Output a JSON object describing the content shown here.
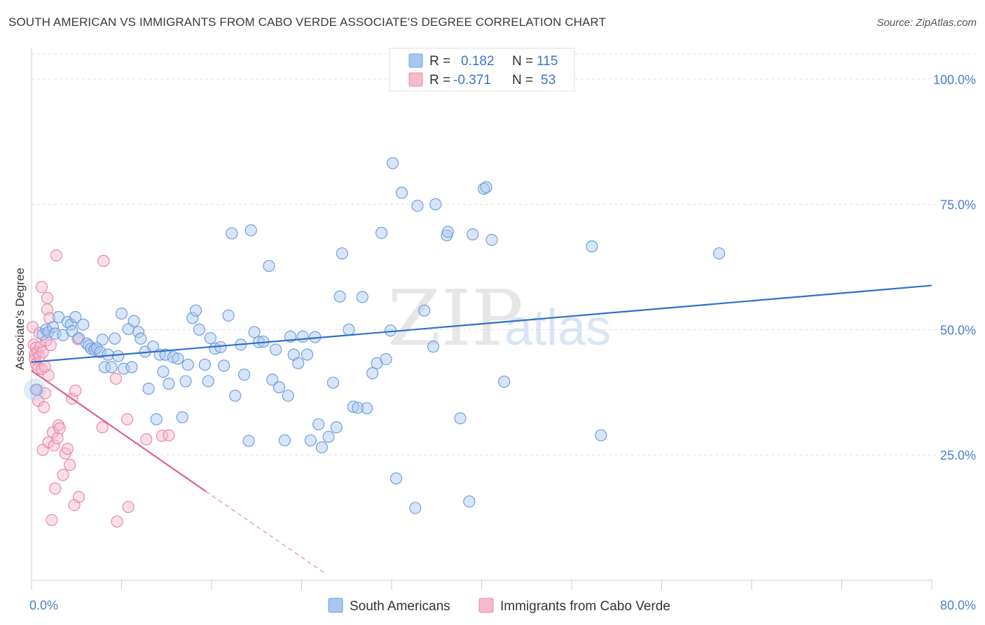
{
  "header": {
    "title": "SOUTH AMERICAN VS IMMIGRANTS FROM CABO VERDE ASSOCIATE'S DEGREE CORRELATION CHART",
    "source": "Source: ZipAtlas.com"
  },
  "watermark": {
    "zip": "ZIP",
    "atlas": "atlas"
  },
  "legend": {
    "rows": [
      {
        "r_label": "R =",
        "r_value": "0.182",
        "n_label": "N =",
        "n_value": "115"
      },
      {
        "r_label": "R =",
        "r_value": "-0.371",
        "n_label": "N =",
        "n_value": "53"
      }
    ]
  },
  "colors": {
    "blue_fill": "#a9c6ef",
    "blue_stroke": "#6f9fdd",
    "blue_line": "#2f6fcb",
    "pink_fill": "#f6b9cd",
    "pink_stroke": "#e987a8",
    "pink_line": "#e0608d",
    "tick_text": "#4a7fd0",
    "grid": "#dddddd"
  },
  "chart_data": {
    "type": "scatter",
    "title": "SOUTH AMERICAN VS IMMIGRANTS FROM CABO VERDE ASSOCIATE'S DEGREE CORRELATION CHART",
    "xlabel": "",
    "ylabel": "Associate's Degree",
    "xlim": [
      0,
      80
    ],
    "ylim": [
      0,
      105
    ],
    "x_tick_labels": [
      "0.0%",
      "80.0%"
    ],
    "y_ticks": [
      25,
      50,
      75,
      100
    ],
    "y_tick_labels": [
      "25.0%",
      "50.0%",
      "75.0%",
      "100.0%"
    ],
    "grid": "horizontal dashed",
    "legend_position": "top-center",
    "series": [
      {
        "name": "South Americans",
        "R": 0.182,
        "N": 115,
        "trend": {
          "x": [
            0,
            80
          ],
          "y": [
            43.5,
            58.8
          ]
        },
        "points": [
          [
            0.4,
            38.0
          ],
          [
            1.0,
            49.0
          ],
          [
            1.3,
            50.0
          ],
          [
            1.5,
            49.5
          ],
          [
            1.9,
            50.5
          ],
          [
            2.1,
            49.2
          ],
          [
            2.4,
            52.5
          ],
          [
            2.8,
            48.9
          ],
          [
            3.2,
            51.5
          ],
          [
            3.5,
            51.0
          ],
          [
            3.6,
            49.7
          ],
          [
            3.9,
            52.5
          ],
          [
            4.2,
            48.3
          ],
          [
            4.6,
            51.0
          ],
          [
            4.9,
            47.2
          ],
          [
            5.1,
            46.8
          ],
          [
            5.3,
            46.2
          ],
          [
            5.6,
            46.0
          ],
          [
            5.8,
            46.3
          ],
          [
            6.1,
            45.5
          ],
          [
            6.3,
            48.0
          ],
          [
            6.5,
            42.5
          ],
          [
            6.8,
            45.0
          ],
          [
            7.1,
            42.5
          ],
          [
            7.4,
            48.2
          ],
          [
            7.7,
            44.7
          ],
          [
            8.0,
            53.2
          ],
          [
            8.2,
            42.2
          ],
          [
            8.6,
            50.1
          ],
          [
            8.9,
            42.5
          ],
          [
            9.1,
            51.7
          ],
          [
            9.5,
            49.5
          ],
          [
            9.7,
            48.2
          ],
          [
            10.1,
            45.6
          ],
          [
            10.4,
            38.2
          ],
          [
            10.8,
            46.6
          ],
          [
            11.1,
            32.1
          ],
          [
            11.4,
            45.0
          ],
          [
            11.7,
            41.6
          ],
          [
            11.9,
            45.0
          ],
          [
            12.2,
            39.2
          ],
          [
            12.6,
            44.5
          ],
          [
            13.0,
            44.2
          ],
          [
            13.4,
            32.5
          ],
          [
            13.7,
            39.7
          ],
          [
            13.9,
            43.0
          ],
          [
            14.3,
            52.3
          ],
          [
            14.6,
            53.8
          ],
          [
            14.9,
            50.0
          ],
          [
            15.4,
            43.0
          ],
          [
            15.7,
            39.7
          ],
          [
            15.9,
            48.3
          ],
          [
            16.3,
            46.2
          ],
          [
            16.8,
            46.5
          ],
          [
            17.1,
            42.8
          ],
          [
            17.5,
            52.8
          ],
          [
            17.8,
            69.2
          ],
          [
            18.1,
            36.8
          ],
          [
            18.6,
            47.0
          ],
          [
            18.9,
            41.0
          ],
          [
            19.3,
            27.8
          ],
          [
            19.5,
            69.8
          ],
          [
            19.8,
            49.5
          ],
          [
            20.2,
            47.5
          ],
          [
            20.6,
            47.6
          ],
          [
            21.1,
            62.7
          ],
          [
            21.4,
            40.0
          ],
          [
            21.7,
            46.0
          ],
          [
            22.0,
            38.5
          ],
          [
            22.5,
            27.9
          ],
          [
            22.8,
            36.8
          ],
          [
            23.0,
            48.6
          ],
          [
            23.3,
            45.0
          ],
          [
            23.7,
            43.3
          ],
          [
            24.1,
            48.6
          ],
          [
            24.5,
            45.0
          ],
          [
            24.8,
            27.9
          ],
          [
            25.2,
            48.5
          ],
          [
            25.5,
            31.1
          ],
          [
            25.8,
            26.5
          ],
          [
            26.4,
            28.6
          ],
          [
            26.8,
            39.4
          ],
          [
            27.1,
            30.5
          ],
          [
            27.4,
            56.6
          ],
          [
            27.6,
            65.2
          ],
          [
            28.2,
            50.0
          ],
          [
            28.6,
            34.6
          ],
          [
            29.0,
            34.4
          ],
          [
            29.4,
            56.5
          ],
          [
            29.8,
            34.3
          ],
          [
            30.3,
            41.3
          ],
          [
            30.7,
            43.3
          ],
          [
            31.1,
            69.3
          ],
          [
            31.5,
            44.1
          ],
          [
            31.9,
            49.8
          ],
          [
            32.1,
            83.2
          ],
          [
            32.4,
            20.3
          ],
          [
            32.9,
            77.3
          ],
          [
            34.1,
            14.4
          ],
          [
            34.3,
            74.7
          ],
          [
            34.9,
            53.8
          ],
          [
            35.7,
            46.6
          ],
          [
            35.9,
            75.0
          ],
          [
            36.9,
            68.8
          ],
          [
            37.0,
            69.5
          ],
          [
            38.1,
            32.3
          ],
          [
            39.2,
            69.0
          ],
          [
            38.9,
            15.7
          ],
          [
            40.2,
            78.1
          ],
          [
            40.4,
            78.4
          ],
          [
            40.9,
            67.9
          ],
          [
            42.0,
            39.6
          ],
          [
            49.8,
            66.6
          ],
          [
            50.6,
            28.9
          ],
          [
            61.1,
            65.2
          ]
        ]
      },
      {
        "name": "Immigrants from Cabo Verde",
        "R": -0.371,
        "N": 53,
        "trend": {
          "x": [
            0,
            15.5
          ],
          "y": [
            41.8,
            17.7
          ]
        },
        "trend_dashed": {
          "x": [
            15.5,
            26.0
          ],
          "y": [
            17.7,
            1.5
          ]
        },
        "points": [
          [
            0.1,
            50.5
          ],
          [
            0.2,
            47.0
          ],
          [
            0.3,
            45.1
          ],
          [
            0.3,
            44.1
          ],
          [
            0.4,
            46.4
          ],
          [
            0.4,
            43.1
          ],
          [
            0.5,
            45.5
          ],
          [
            0.5,
            38.0
          ],
          [
            0.6,
            42.3
          ],
          [
            0.6,
            35.8
          ],
          [
            0.7,
            44.6
          ],
          [
            0.7,
            49.3
          ],
          [
            0.8,
            46.6
          ],
          [
            0.9,
            42.1
          ],
          [
            0.9,
            58.5
          ],
          [
            1.0,
            45.5
          ],
          [
            1.0,
            26.0
          ],
          [
            1.1,
            34.5
          ],
          [
            1.2,
            37.3
          ],
          [
            1.3,
            47.8
          ],
          [
            1.4,
            54.0
          ],
          [
            1.4,
            56.3
          ],
          [
            1.5,
            40.9
          ],
          [
            1.5,
            27.5
          ],
          [
            1.6,
            52.3
          ],
          [
            1.7,
            46.9
          ],
          [
            1.8,
            12.0
          ],
          [
            1.9,
            29.5
          ],
          [
            2.0,
            26.9
          ],
          [
            2.1,
            18.3
          ],
          [
            2.2,
            64.8
          ],
          [
            2.3,
            28.3
          ],
          [
            2.4,
            30.9
          ],
          [
            2.5,
            30.3
          ],
          [
            2.8,
            21.0
          ],
          [
            3.0,
            25.3
          ],
          [
            3.2,
            26.2
          ],
          [
            3.4,
            23.0
          ],
          [
            3.6,
            36.2
          ],
          [
            3.8,
            15.0
          ],
          [
            3.9,
            37.8
          ],
          [
            4.1,
            48.1
          ],
          [
            4.2,
            16.6
          ],
          [
            6.3,
            30.5
          ],
          [
            6.4,
            63.7
          ],
          [
            7.5,
            40.2
          ],
          [
            7.6,
            11.7
          ],
          [
            8.5,
            32.1
          ],
          [
            8.6,
            14.6
          ],
          [
            10.2,
            28.1
          ],
          [
            11.6,
            28.8
          ],
          [
            12.2,
            28.9
          ],
          [
            1.2,
            42.6
          ]
        ]
      }
    ]
  },
  "bottom_legend": {
    "items": [
      {
        "label": "South Americans"
      },
      {
        "label": "Immigrants from Cabo Verde"
      }
    ]
  }
}
